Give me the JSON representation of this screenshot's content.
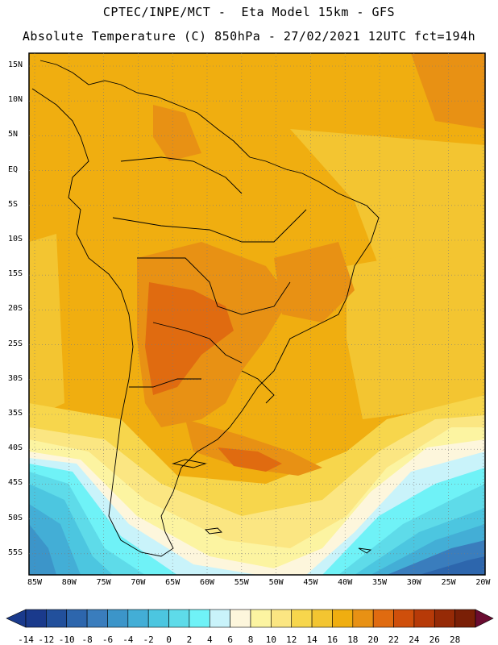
{
  "header": {
    "line1": "CPTEC/INPE/MCT -  Eta Model 15km - GFS",
    "line2": "Absolute Temperature (C) 850hPa - 27/02/2021 12UTC fct=194h"
  },
  "map": {
    "lat_labels": [
      "15N",
      "10N",
      "5N",
      "EQ",
      "5S",
      "10S",
      "15S",
      "20S",
      "25S",
      "30S",
      "35S",
      "40S",
      "45S",
      "50S",
      "55S"
    ],
    "lon_labels": [
      "85W",
      "80W",
      "75W",
      "70W",
      "65W",
      "60W",
      "55W",
      "50W",
      "45W",
      "40W",
      "35W",
      "30W",
      "25W",
      "20W"
    ]
  },
  "colorbar": {
    "labels": [
      "-14",
      "-12",
      "-10",
      "-8",
      "-6",
      "-4",
      "-2",
      "0",
      "2",
      "4",
      "6",
      "8",
      "10",
      "12",
      "14",
      "16",
      "18",
      "20",
      "22",
      "24",
      "26",
      "28"
    ],
    "colors": [
      "#1a3a8c",
      "#22509c",
      "#2d66ad",
      "#3a7dbd",
      "#3c95c9",
      "#43aed6",
      "#4cc6e0",
      "#5edbe9",
      "#6ff2f7",
      "#c9f3fa",
      "#fdf6dc",
      "#fcf4a1",
      "#fbe682",
      "#f7d64c",
      "#f3c531",
      "#f0ae10",
      "#e89114",
      "#e06b10",
      "#cf4f0b",
      "#b73a08",
      "#962a06",
      "#7a1f06"
    ]
  }
}
